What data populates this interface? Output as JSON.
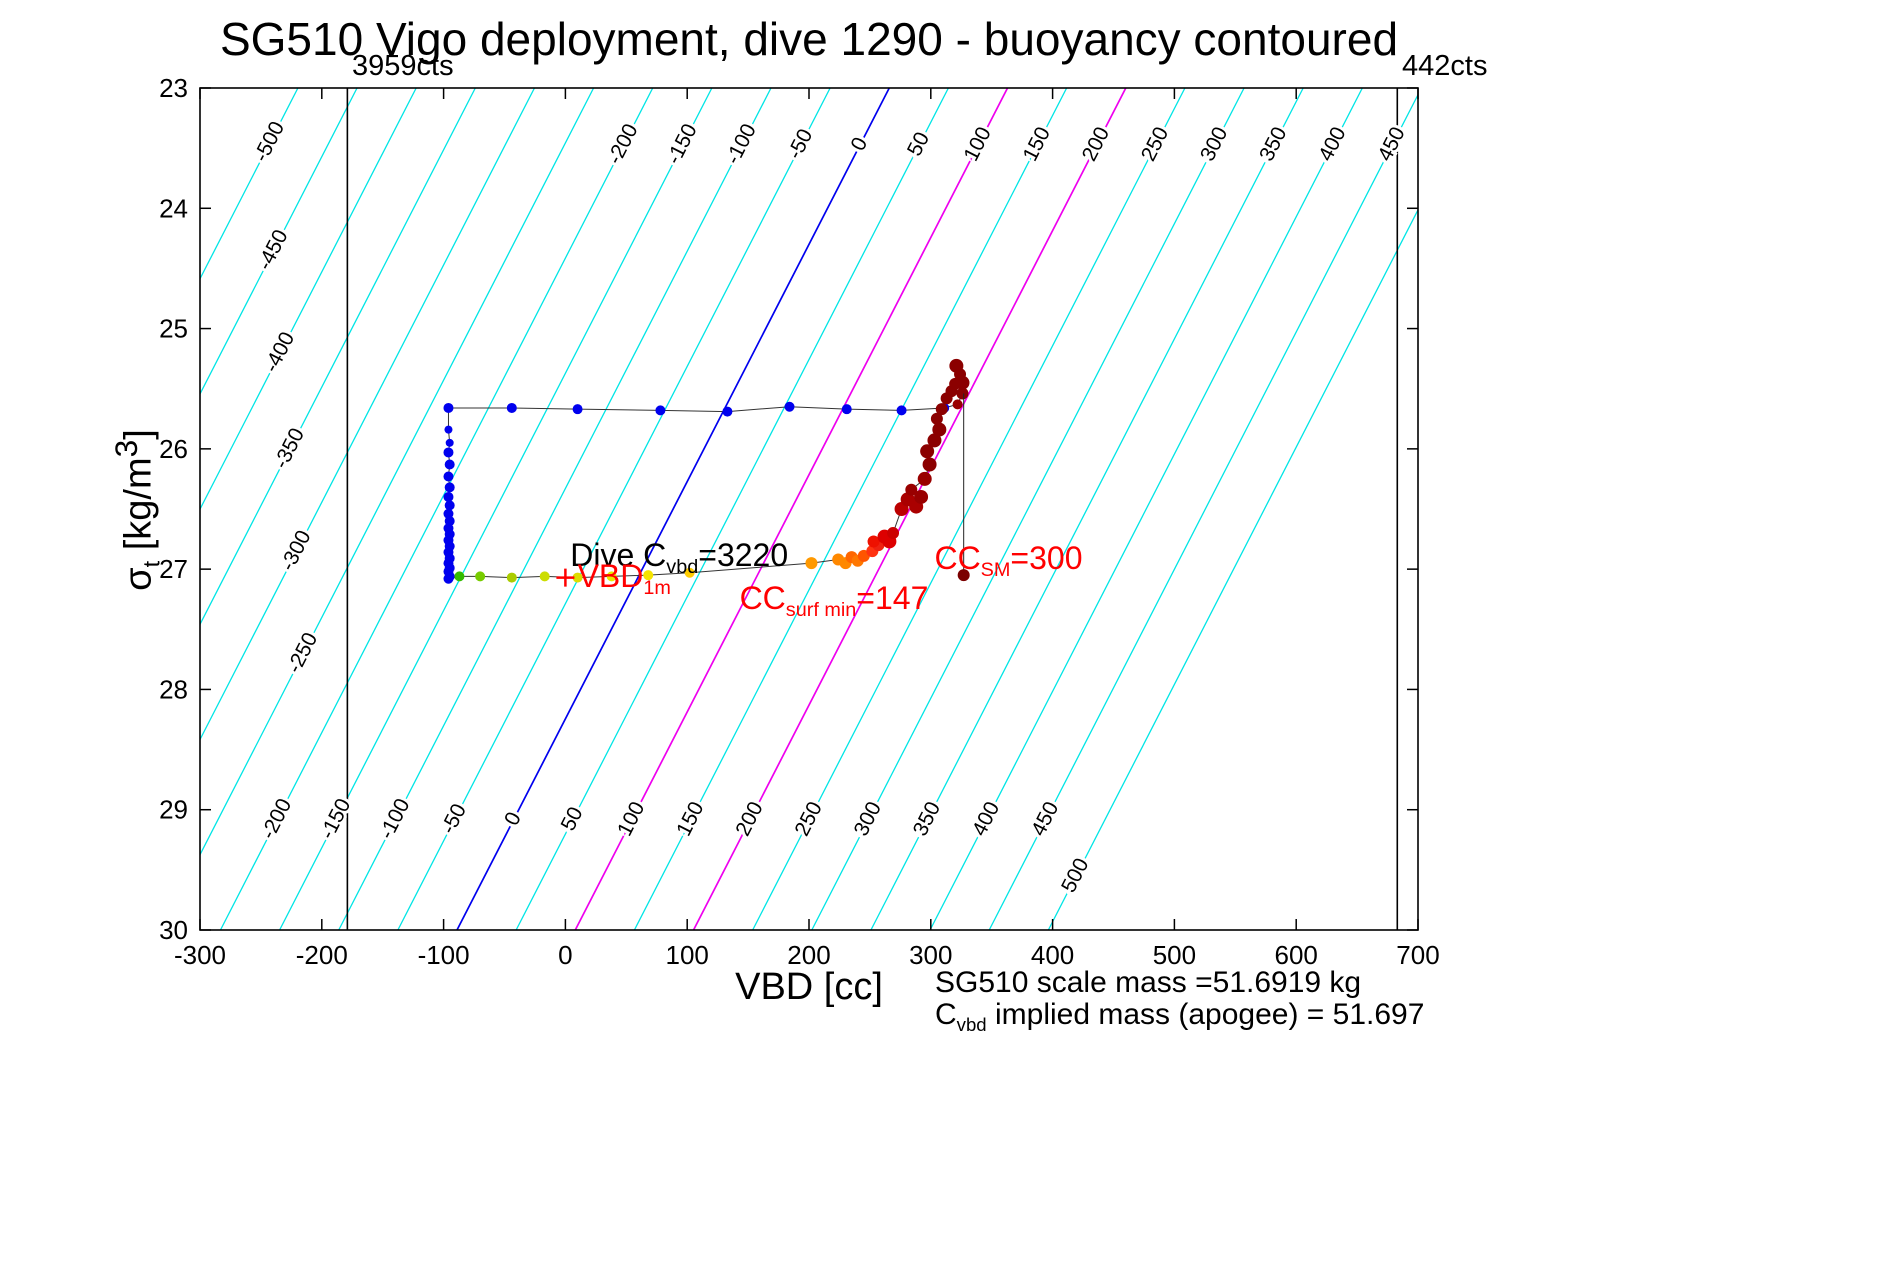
{
  "title": "SG510 Vigo deployment, dive 1290 - buoyancy contoured",
  "corner_labels": {
    "left": "3959cts",
    "right": "442cts"
  },
  "axes": {
    "xlabel": "VBD [cc]",
    "ylabel_sigma": "σ",
    "ylabel_sub": "t",
    "ylabel_mid": " [kg/m",
    "ylabel_sup": "3",
    "ylabel_end": "]"
  },
  "footer": {
    "line1": "SG510 scale mass =51.6919 kg",
    "line2_c": "C",
    "line2_sub": "vbd",
    "line2_rest": " implied mass (apogee) = 51.697"
  },
  "chart_data": {
    "type": "scatter",
    "title": "SG510 Vigo deployment, dive 1290 - buoyancy contoured",
    "xlabel": "VBD [cc]",
    "ylabel": "sigma_t [kg/m^3]",
    "xlim": [
      -300,
      700
    ],
    "ylim": [
      23,
      30
    ],
    "y_axis_reversed_display": "23 at top, 30 at bottom",
    "xticks": [
      -300,
      -200,
      -100,
      0,
      100,
      200,
      300,
      400,
      500,
      600,
      700
    ],
    "yticks": [
      23,
      24,
      25,
      26,
      27,
      28,
      29,
      30
    ],
    "grid": "off",
    "contours": {
      "values": [
        -500,
        -450,
        -400,
        -350,
        -300,
        -250,
        -200,
        -150,
        -100,
        -50,
        0,
        50,
        100,
        150,
        200,
        250,
        300,
        350,
        400,
        450,
        500
      ],
      "interval": 50,
      "color": "#00E5E5",
      "zero_color": "#0000EE",
      "magenta_values": [
        100,
        200
      ],
      "magenta_color": "#EE00EE",
      "label_color": "#000000",
      "cc0": -89,
      "cc_per_value": 0.971,
      "cc_per_sigma": 50.7,
      "label_angle": -63,
      "top_label_sigma": 23.47,
      "bottom_label_sigma": 29.08,
      "last_bottom_sigma": 29.55,
      "left_label_sigma": {
        "-500": 23.45,
        "-450": 24.35,
        "-400": 25.2,
        "-350": 26.0,
        "-300": 26.85,
        "-250": 27.7
      }
    },
    "vbd_limit_lines": [
      {
        "x": -179,
        "label": "3959cts"
      },
      {
        "x": 683,
        "label": "442cts"
      }
    ],
    "trajectory_point_format": "[vbd_cc, sigma_t, color, radius]",
    "trajectory": [
      [
        321,
        25.31,
        "#8B0000",
        7
      ],
      [
        324,
        25.38,
        "#8B0000",
        6
      ],
      [
        326,
        25.45,
        "#8B0000",
        7
      ],
      [
        326,
        25.54,
        "#8B0000",
        6
      ],
      [
        322,
        25.63,
        "#990000",
        5
      ],
      [
        311,
        25.66,
        "#0000EE",
        5
      ],
      [
        276,
        25.68,
        "#0000EE",
        5
      ],
      [
        231,
        25.67,
        "#0000EE",
        5
      ],
      [
        184,
        25.65,
        "#0000EE",
        5
      ],
      [
        133,
        25.69,
        "#0000EE",
        5
      ],
      [
        78,
        25.68,
        "#0000EE",
        5
      ],
      [
        10,
        25.67,
        "#0000EE",
        5
      ],
      [
        -44,
        25.66,
        "#0000EE",
        5
      ],
      [
        -96,
        25.66,
        "#0000EE",
        5
      ],
      [
        -96,
        25.84,
        "#0000EE",
        4
      ],
      [
        -95,
        25.95,
        "#0000EE",
        4
      ],
      [
        -96,
        26.03,
        "#0000EE",
        5
      ],
      [
        -95,
        26.13,
        "#0000EE",
        5
      ],
      [
        -96,
        26.23,
        "#0000EE",
        5
      ],
      [
        -95,
        26.32,
        "#0000EE",
        5
      ],
      [
        -96,
        26.4,
        "#0000EE",
        5
      ],
      [
        -95,
        26.47,
        "#0000EE",
        5
      ],
      [
        -96,
        26.54,
        "#0000EE",
        5
      ],
      [
        -95,
        26.6,
        "#0000EE",
        5
      ],
      [
        -96,
        26.66,
        "#0000EE",
        5
      ],
      [
        -95,
        26.71,
        "#0000EE",
        5
      ],
      [
        -96,
        26.76,
        "#0000EE",
        5
      ],
      [
        -95,
        26.81,
        "#0000EE",
        5
      ],
      [
        -96,
        26.86,
        "#0000EE",
        5
      ],
      [
        -95,
        26.91,
        "#0000EE",
        5
      ],
      [
        -96,
        26.95,
        "#0000EE",
        5
      ],
      [
        -95,
        26.99,
        "#0000EE",
        5
      ],
      [
        -96,
        27.02,
        "#0000EE",
        5
      ],
      [
        -95,
        27.06,
        "#0000EE",
        5
      ],
      [
        -96,
        27.08,
        "#0000EE",
        5
      ],
      [
        -87,
        27.06,
        "#33BB00",
        5
      ],
      [
        -70,
        27.06,
        "#77CC00",
        5
      ],
      [
        -44,
        27.07,
        "#AACC00",
        5
      ],
      [
        -17,
        27.06,
        "#CCDD00",
        5
      ],
      [
        10,
        27.07,
        "#DDDD00",
        5
      ],
      [
        38,
        27.06,
        "#E8E800",
        5
      ],
      [
        68,
        27.05,
        "#F5E400",
        5
      ],
      [
        102,
        27.03,
        "#FFCC00",
        5
      ],
      [
        202,
        26.95,
        "#FF9900",
        6
      ],
      [
        224,
        26.92,
        "#FF8800",
        6
      ],
      [
        230,
        26.95,
        "#FF8800",
        6
      ],
      [
        235,
        26.9,
        "#FF6600",
        6
      ],
      [
        240,
        26.93,
        "#FF7700",
        6
      ],
      [
        245,
        26.89,
        "#FF5500",
        6
      ],
      [
        252,
        26.85,
        "#FF3311",
        6
      ],
      [
        257,
        26.8,
        "#EE2211",
        6
      ],
      [
        253,
        26.77,
        "#EE1100",
        6
      ],
      [
        262,
        26.73,
        "#DD0000",
        7
      ],
      [
        266,
        26.77,
        "#DD0000",
        7
      ],
      [
        269,
        26.7,
        "#CC0000",
        6
      ],
      [
        276,
        26.5,
        "#BB0000",
        7
      ],
      [
        281,
        26.42,
        "#AA0000",
        7
      ],
      [
        288,
        26.48,
        "#AA0000",
        7
      ],
      [
        292,
        26.4,
        "#990000",
        7
      ],
      [
        284,
        26.34,
        "#990000",
        6
      ],
      [
        295,
        26.25,
        "#990000",
        7
      ],
      [
        299,
        26.13,
        "#8B0000",
        7
      ],
      [
        297,
        26.02,
        "#8B0000",
        7
      ],
      [
        303,
        25.93,
        "#8B0000",
        7
      ],
      [
        307,
        25.84,
        "#8B0000",
        7
      ],
      [
        305,
        25.75,
        "#8B0000",
        6
      ],
      [
        309,
        25.67,
        "#8B0000",
        6
      ],
      [
        313,
        25.58,
        "#8B0000",
        6
      ],
      [
        317,
        25.52,
        "#8B0000",
        6
      ],
      [
        320,
        25.46,
        "#8B0000",
        6
      ]
    ],
    "sm_marker": {
      "x": 327,
      "y1": 25.54,
      "y2": 27.05,
      "color": "#7B0000"
    },
    "plus_marker": {
      "x": 0,
      "y": 27.07,
      "color": "#FF0000"
    },
    "annotations": [
      {
        "id": "dive-cvbd",
        "color": "#000000",
        "x": 4,
        "y": 26.88,
        "parts": [
          {
            "t": "Dive C"
          },
          {
            "t": "vbd",
            "sub": true
          },
          {
            "t": "=3220"
          }
        ]
      },
      {
        "id": "vbd-1m",
        "color": "#FF0000",
        "x": 10,
        "y": 27.06,
        "parts": [
          {
            "t": "VBD"
          },
          {
            "t": "1m",
            "sub": true
          }
        ]
      },
      {
        "id": "cc-surf-min",
        "color": "#FF0000",
        "x": 143,
        "y": 27.24,
        "parts": [
          {
            "t": "CC"
          },
          {
            "t": "surf min",
            "sub": true
          },
          {
            "t": "=147"
          }
        ]
      },
      {
        "id": "cc-sm",
        "color": "#FF0000",
        "x": 303,
        "y": 26.91,
        "parts": [
          {
            "t": "CC"
          },
          {
            "t": "SM",
            "sub": true
          },
          {
            "t": "=300"
          }
        ]
      }
    ]
  }
}
